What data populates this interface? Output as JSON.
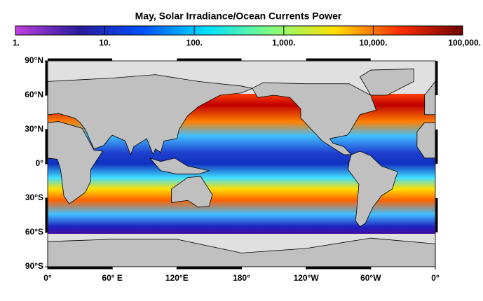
{
  "title": "May, Solar Irradiance/Ocean Currents Power",
  "colorbar": {
    "scale": "log",
    "lim": [
      1,
      100000
    ],
    "ticks": [
      {
        "value": 1,
        "label": "1."
      },
      {
        "value": 10,
        "label": "10."
      },
      {
        "value": 100,
        "label": "100."
      },
      {
        "value": 1000,
        "label": "1,000."
      },
      {
        "value": 10000,
        "label": "10,000."
      },
      {
        "value": 100000,
        "label": "100,000."
      }
    ],
    "colors": [
      "#c040e0",
      "#2a1a9a",
      "#0050ff",
      "#00e0ff",
      "#80ff80",
      "#ffe000",
      "#ff3000",
      "#700000"
    ]
  },
  "map": {
    "latitude_ticks": [
      {
        "value": 90,
        "label": "90°N"
      },
      {
        "value": 60,
        "label": "60°N"
      },
      {
        "value": 30,
        "label": "30°N"
      },
      {
        "value": 0,
        "label": "0°"
      },
      {
        "value": -30,
        "label": "30°S"
      },
      {
        "value": -60,
        "label": "60°S"
      },
      {
        "value": -90,
        "label": "90°S"
      }
    ],
    "longitude_ticks": [
      {
        "value": 0,
        "label": "0°"
      },
      {
        "value": 60,
        "label": "60° E"
      },
      {
        "value": 120,
        "label": "120°E"
      },
      {
        "value": 180,
        "label": "180°"
      },
      {
        "value": 240,
        "label": "120°W"
      },
      {
        "value": 300,
        "label": "60°W"
      },
      {
        "value": 360,
        "label": "0°"
      }
    ]
  }
}
